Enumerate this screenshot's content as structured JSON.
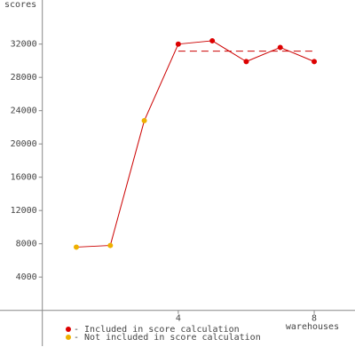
{
  "chart_data": {
    "type": "line",
    "y_label": "scores",
    "x_label": "warehouses",
    "xlim": [
      0,
      9.2
    ],
    "xticks": [
      4,
      8
    ],
    "ylim": [
      -4300,
      37300
    ],
    "yticks": [
      4000,
      8000,
      12000,
      16000,
      20000,
      24000,
      28000,
      32000
    ],
    "line_color": "#cc0000",
    "score_line": 31160,
    "score_line_color": "#cc0000",
    "series": [
      {
        "name": "- Included in score calculation",
        "color": "#dd0000",
        "x": [
          4,
          5,
          6,
          7,
          8
        ],
        "values": [
          32000,
          32400,
          29900,
          31600,
          29900
        ]
      },
      {
        "name": "- Not included in score calculation",
        "color": "#eeb000",
        "x": [
          1,
          2,
          3
        ],
        "values": [
          7600,
          7800,
          22800
        ]
      }
    ]
  }
}
